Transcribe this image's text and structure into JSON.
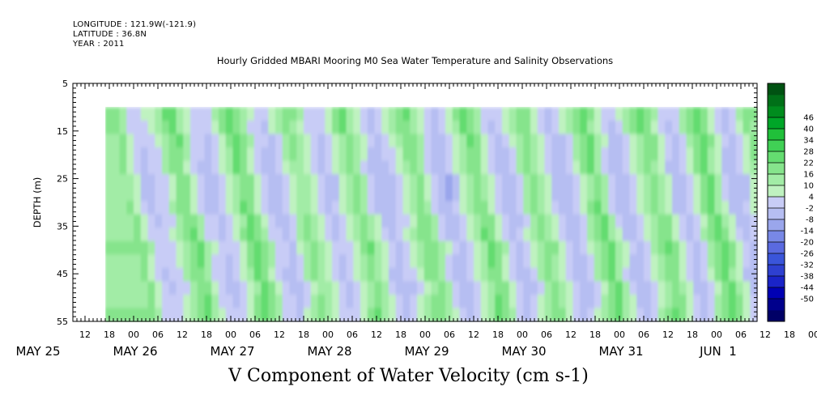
{
  "header": {
    "longitude": "LONGITUDE : 121.9W(-121.9)",
    "latitude": "LATITUDE : 36.8N",
    "year": "YEAR : 2011"
  },
  "chart_data": {
    "type": "heatmap",
    "title": "Hourly Gridded MBARI Mooring M0 Sea Water Temperature and Salinity Observations",
    "variable_label": "V Component of Water Velocity (cm s-1)",
    "ylabel": "DEPTH (m)",
    "ylim": [
      55,
      5
    ],
    "y_ticks": [
      "5",
      "15",
      "25",
      "35",
      "45",
      "55"
    ],
    "x_hour_ticks": [
      "12",
      "18",
      "00",
      "06",
      "12",
      "18",
      "00",
      "06",
      "12",
      "18",
      "00",
      "06",
      "12",
      "18",
      "00",
      "06",
      "12",
      "18",
      "00",
      "06",
      "12",
      "18",
      "00",
      "06",
      "12",
      "18",
      "00",
      "06",
      "12",
      "18",
      "00",
      "06"
    ],
    "x_day_labels": [
      "MAY 25",
      "MAY 26",
      "MAY 27",
      "MAY 28",
      "MAY 29",
      "MAY 30",
      "MAY 31",
      "JUN  1"
    ],
    "x_start": "2011-05-25 09:00",
    "x_end": "2011-06-01 10:00",
    "data_start": "2011-05-25 17:00",
    "data_depth_range": [
      10,
      55
    ],
    "colorbar": {
      "levels": [
        -50,
        -44,
        -38,
        -32,
        -26,
        -20,
        -14,
        -8,
        -2,
        4,
        10,
        16,
        22,
        28,
        34,
        40,
        46
      ],
      "tick_labels": [
        "46",
        "40",
        "34",
        "28",
        "22",
        "16",
        "10",
        "4",
        "-2",
        "-8",
        "-14",
        "-20",
        "-26",
        "-32",
        "-38",
        "-44",
        "-50"
      ],
      "colors": [
        "#000066",
        "#00008c",
        "#0000b4",
        "#1a24c8",
        "#2e40d0",
        "#3a55da",
        "#5a6ae0",
        "#7888e6",
        "#9aa6ec",
        "#b6bef2",
        "#c8ccf6",
        "#bff2c0",
        "#a2eca6",
        "#86e48c",
        "#64dc70",
        "#40d055",
        "#20c03a",
        "#00a628",
        "#008c1e",
        "#007018",
        "#005212"
      ]
    },
    "columns_v": [
      9,
      12,
      3,
      -6,
      -8,
      -4,
      -2,
      6,
      14,
      16,
      5,
      -3,
      -7,
      -9,
      -5,
      2,
      10,
      18,
      13,
      4,
      -4,
      -8,
      -10,
      -3,
      5,
      11,
      8,
      2,
      -5,
      -9,
      -6,
      1,
      9,
      15,
      7,
      -1,
      -8,
      -11,
      -7,
      -2,
      4,
      11,
      14,
      6,
      -3,
      -9,
      -12,
      -6,
      1,
      8,
      16,
      12,
      3,
      -5,
      -10,
      -8,
      -2,
      7,
      13,
      9,
      1,
      -6,
      -11,
      -9,
      -3,
      5,
      12,
      18,
      8,
      -2,
      -9,
      -10,
      -4,
      3,
      9,
      15,
      11,
      2,
      -7,
      -10,
      -5,
      4,
      13,
      19,
      10,
      0,
      -8,
      -11,
      -6,
      2,
      11,
      8
    ],
    "depth_bias": [
      3,
      2,
      1,
      0,
      -1,
      -2,
      -2,
      -1,
      0,
      1,
      2,
      1,
      0,
      -1,
      1,
      2
    ]
  }
}
